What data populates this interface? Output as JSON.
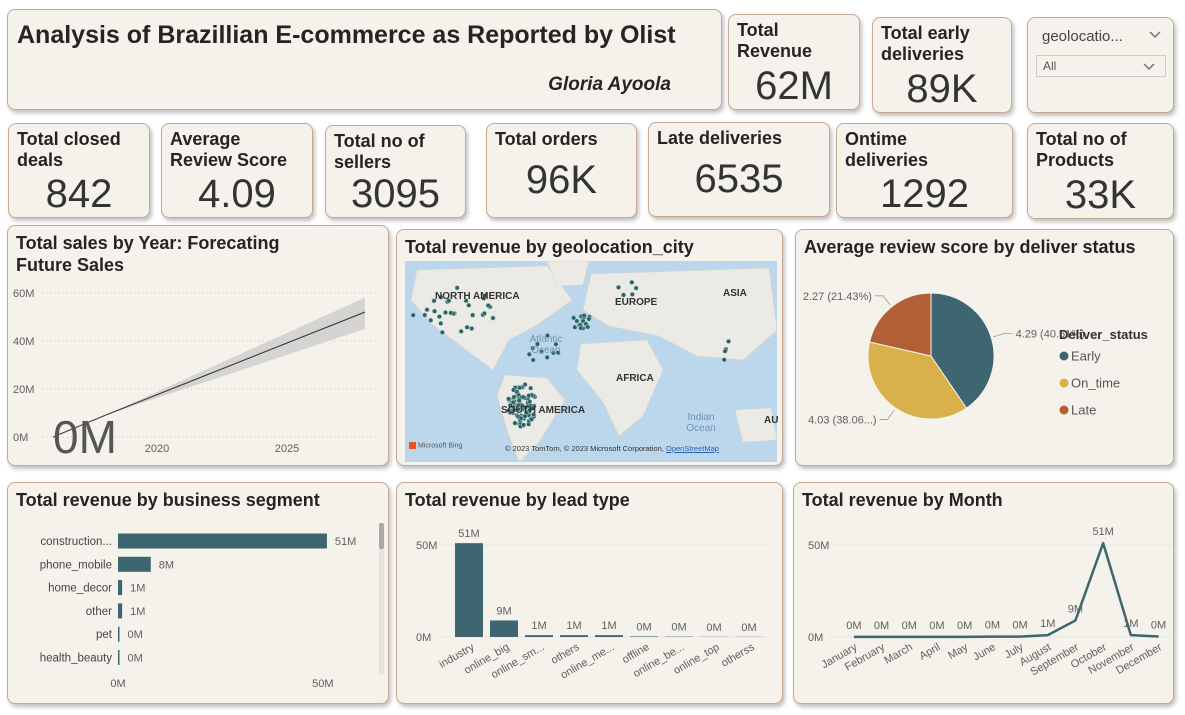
{
  "header": {
    "title": "Analysis of Brazillian E-commerce as Reported by Olist",
    "author": "Gloria Ayoola"
  },
  "kpis": [
    {
      "label": "Total Revenue",
      "value": "62M"
    },
    {
      "label": "Total early deliveries",
      "value": "89K"
    },
    {
      "label": "Total closed deals",
      "value": 842
    },
    {
      "label": "Average Review Score",
      "value": 4.09
    },
    {
      "label": "Total no of sellers",
      "value": 3095
    },
    {
      "label": "Total orders",
      "value": "96K"
    },
    {
      "label": "Late deliveries",
      "value": 6535
    },
    {
      "label": "Ontime deliveries",
      "value": 1292
    },
    {
      "label": "Total no of Products",
      "value": "33K"
    }
  ],
  "filter": {
    "field": "geolocatio...",
    "value": "All"
  },
  "map": {
    "title": "Total revenue by geolocation_city",
    "labels": [
      "NORTH AMERICA",
      "EUROPE",
      "ASIA",
      "Atlantic Ocean",
      "AFRICA",
      "SOUTH AMERICA",
      "Indian Ocean",
      "AU"
    ],
    "logo": "Microsoft Bing",
    "attribution": "© 2023 TomTom, © 2023 Microsoft Corporation,",
    "link": "OpenStreetMap"
  },
  "chart_data": [
    {
      "type": "line",
      "title": "Total sales by Year: Forecating Future Sales",
      "x": [
        2016,
        2018,
        2028
      ],
      "values": [
        0,
        9000000,
        52000000
      ],
      "upper": [
        0,
        9000000,
        58000000
      ],
      "lower": [
        0,
        9000000,
        45000000
      ],
      "value_labels": [
        "0M",
        null,
        null
      ],
      "color": "#404040",
      "band_color": "#cfcfcf",
      "xlim": [
        2016,
        2028.5
      ],
      "ylim": [
        0,
        62000000
      ],
      "xticks": [
        2020,
        2025
      ],
      "yticks": [
        {
          "value": 0,
          "label": "0M"
        },
        {
          "value": 20000000,
          "label": "20M"
        },
        {
          "value": 40000000,
          "label": "40M"
        },
        {
          "value": 60000000,
          "label": "60M"
        }
      ],
      "grid": true
    },
    {
      "type": "pie",
      "title": "Average review score by deliver status",
      "legend_title": "Deliver_status",
      "categories": [
        "Early",
        "On_time",
        "Late"
      ],
      "values": [
        4.29,
        4.03,
        2.27
      ],
      "value_labels": [
        "4.29 (40.51%)",
        "4.03 (38.06...)",
        "2.27 (21.43%)"
      ],
      "colors": [
        "#3d6671",
        "#d8b14b",
        "#b35f36"
      ]
    },
    {
      "type": "bar",
      "orientation": "horizontal",
      "title": "Total revenue by business segment",
      "categories": [
        "construction...",
        "phone_mobile",
        "home_decor",
        "other",
        "pet",
        "health_beauty"
      ],
      "values": [
        51000000,
        8000000,
        1000000,
        1000000,
        200000,
        100000
      ],
      "value_labels": [
        "51M",
        "8M",
        "1M",
        "1M",
        "0M",
        "0M"
      ],
      "color": "#3d6671",
      "xlim": [
        0,
        52000000
      ],
      "xticks": [
        {
          "value": 0,
          "label": "0M"
        },
        {
          "value": 50000000,
          "label": "50M"
        }
      ]
    },
    {
      "type": "bar",
      "title": "Total revenue by lead type",
      "categories": [
        "industry",
        "online_big",
        "online_sm...",
        "others",
        "online_me...",
        "offline",
        "online_be...",
        "online_top",
        "otherss"
      ],
      "values": [
        51000000,
        9000000,
        1000000,
        1000000,
        1000000,
        300000,
        200000,
        100000,
        100000
      ],
      "value_labels": [
        "51M",
        "9M",
        "1M",
        "1M",
        "1M",
        "0M",
        "0M",
        "0M",
        "0M"
      ],
      "color": "#3d6671",
      "ylim": [
        0,
        55000000
      ],
      "yticks": [
        {
          "value": 0,
          "label": "0M"
        },
        {
          "value": 50000000,
          "label": "50M"
        }
      ],
      "grid": true
    },
    {
      "type": "line",
      "title": "Total revenue by Month",
      "categories": [
        "January",
        "February",
        "March",
        "April",
        "May",
        "June",
        "July",
        "August",
        "September",
        "October",
        "November",
        "December"
      ],
      "values": [
        100000,
        100000,
        100000,
        100000,
        100000,
        200000,
        200000,
        1000000,
        9000000,
        51000000,
        1000000,
        300000
      ],
      "value_labels": [
        "0M",
        "0M",
        "0M",
        "0M",
        "0M",
        "0M",
        "0M",
        "1M",
        "9M",
        "51M",
        "1M",
        "0M"
      ],
      "color": "#3d6671",
      "ylim": [
        0,
        55000000
      ],
      "yticks": [
        {
          "value": 0,
          "label": "0M"
        },
        {
          "value": 50000000,
          "label": "50M"
        }
      ],
      "grid": true
    }
  ]
}
